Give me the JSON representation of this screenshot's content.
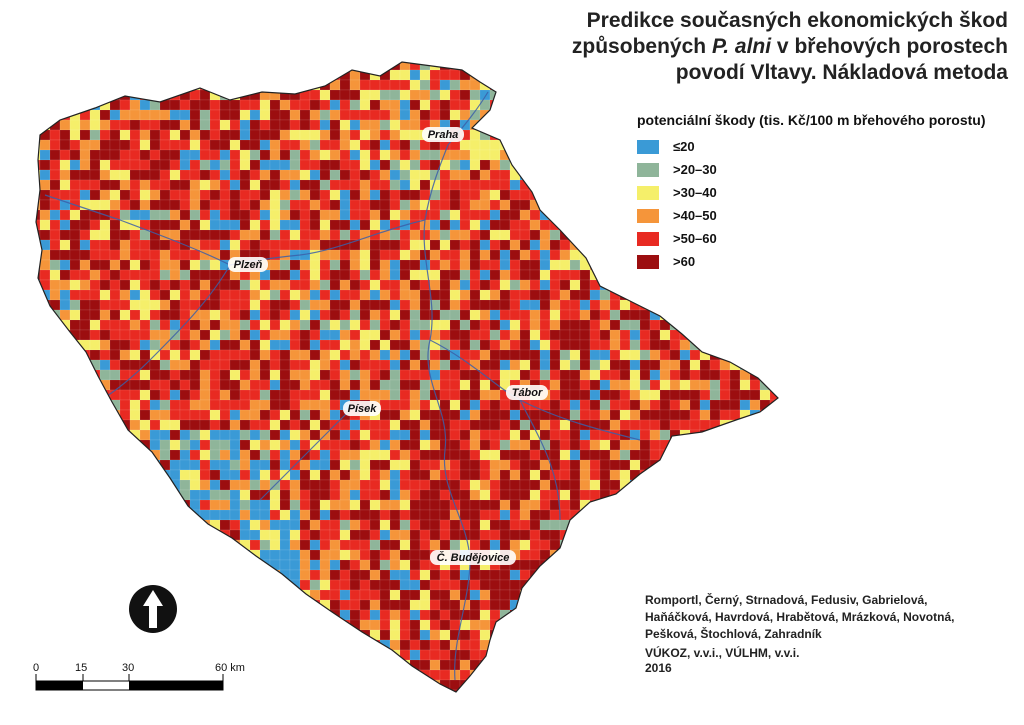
{
  "title": {
    "line1": "Predikce současných ekonomických škod",
    "line2_pre": "způsobených ",
    "line2_italic": "P. alni",
    "line2_post": " v břehových porostech",
    "line3": "povodí Vltavy. Nákladová metoda"
  },
  "legend": {
    "title": "potenciální škody (tis. Kč/100 m břehového porostu)",
    "items": [
      {
        "label": "≤20",
        "color": "#3a9ad6"
      },
      {
        "label": ">20–30",
        "color": "#8fb59a"
      },
      {
        "label": ">30–40",
        "color": "#f5ef6a"
      },
      {
        "label": ">40–50",
        "color": "#f5953a"
      },
      {
        "label": ">50–60",
        "color": "#e82a22"
      },
      {
        "label": ">60",
        "color": "#9c0e10"
      }
    ]
  },
  "cities": [
    "Praha",
    "Plzeň",
    "Písek",
    "Tábor",
    "Č. Budějovice"
  ],
  "authors": [
    "Romportl, Černý, Strnadová, Fedusiv, Gabrielová,",
    "Haňáčková, Havrdová, Hrabětová, Mrázková, Novotná,",
    "Pešková, Štochlová, Zahradník"
  ],
  "institution": "VÚKOZ, v.v.i., VÚLHM, v.v.i.",
  "year": "2016",
  "scale": {
    "labels": [
      "0",
      "15",
      "30",
      "60 km"
    ]
  },
  "icons": {
    "north_arrow": "north-arrow-icon"
  }
}
